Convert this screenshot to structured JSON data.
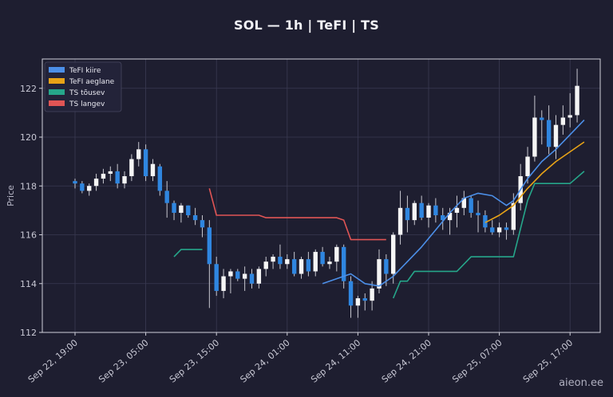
{
  "title": "SOL — 1h  |  TeFI  |  TS",
  "watermark": "aieon.ee",
  "chart_data": {
    "type": "candlestick",
    "ylabel": "Price",
    "ylim": [
      112,
      123.2
    ],
    "yticks": [
      112,
      114,
      116,
      118,
      120,
      122
    ],
    "xtick_labels": [
      "Sep 22, 19:00",
      "Sep 23, 05:00",
      "Sep 23, 15:00",
      "Sep 24, 01:00",
      "Sep 24, 11:00",
      "Sep 24, 21:00",
      "Sep 25, 07:00",
      "Sep 25, 17:00"
    ],
    "xtick_index": [
      0,
      10,
      20,
      30,
      40,
      50,
      60,
      70
    ],
    "grid": true,
    "legend_position": "top-left",
    "colors": {
      "up": "#f5f5f5",
      "down": "#2f86e0",
      "wick": "#c8c8d0",
      "fast": "#4c8fe8",
      "slow": "#e8a317",
      "ts_up": "#26a68a",
      "ts_down": "#e05555"
    },
    "legend": [
      {
        "label": "TeFI kiire",
        "color": "#4c8fe8"
      },
      {
        "label": "TeFI aeglane",
        "color": "#e8a317"
      },
      {
        "label": "TS tõusev",
        "color": "#26a68a"
      },
      {
        "label": "TS langev",
        "color": "#e05555"
      }
    ],
    "candles": [
      [
        118.2,
        118.3,
        117.9,
        118.1
      ],
      [
        118.1,
        118.2,
        117.7,
        117.8
      ],
      [
        117.8,
        118.1,
        117.6,
        118.0
      ],
      [
        118.0,
        118.5,
        117.8,
        118.3
      ],
      [
        118.3,
        118.7,
        118.1,
        118.5
      ],
      [
        118.5,
        118.8,
        118.2,
        118.6
      ],
      [
        118.6,
        118.9,
        117.9,
        118.1
      ],
      [
        118.1,
        118.6,
        117.9,
        118.4
      ],
      [
        118.4,
        119.3,
        118.2,
        119.1
      ],
      [
        119.1,
        119.8,
        118.8,
        119.5
      ],
      [
        119.5,
        119.7,
        118.2,
        118.4
      ],
      [
        118.4,
        119.1,
        118.2,
        118.9
      ],
      [
        118.8,
        118.9,
        117.6,
        117.8
      ],
      [
        117.8,
        118.2,
        116.7,
        117.3
      ],
      [
        117.3,
        117.4,
        116.6,
        116.9
      ],
      [
        116.9,
        117.3,
        116.5,
        117.2
      ],
      [
        117.2,
        117.2,
        116.7,
        116.8
      ],
      [
        116.8,
        117.1,
        116.4,
        116.6
      ],
      [
        116.6,
        116.8,
        115.9,
        116.3
      ],
      [
        116.3,
        116.6,
        113.0,
        114.8
      ],
      [
        114.8,
        115.1,
        113.5,
        113.7
      ],
      [
        113.7,
        114.6,
        113.4,
        114.3
      ],
      [
        114.3,
        114.6,
        113.6,
        114.5
      ],
      [
        114.5,
        114.6,
        114.1,
        114.2
      ],
      [
        114.2,
        114.7,
        113.7,
        114.4
      ],
      [
        114.4,
        114.6,
        113.8,
        114.0
      ],
      [
        114.0,
        114.7,
        113.8,
        114.6
      ],
      [
        114.6,
        115.1,
        114.3,
        114.9
      ],
      [
        114.9,
        115.2,
        114.6,
        115.1
      ],
      [
        115.1,
        115.6,
        114.6,
        114.8
      ],
      [
        114.8,
        115.2,
        114.6,
        115.0
      ],
      [
        115.0,
        115.3,
        114.3,
        114.4
      ],
      [
        114.4,
        115.1,
        114.2,
        115.0
      ],
      [
        115.0,
        115.3,
        114.3,
        114.5
      ],
      [
        114.5,
        115.4,
        114.3,
        115.3
      ],
      [
        115.3,
        115.5,
        114.7,
        114.8
      ],
      [
        114.8,
        115.1,
        114.6,
        114.9
      ],
      [
        114.9,
        115.6,
        114.5,
        115.5
      ],
      [
        115.5,
        115.6,
        113.8,
        114.1
      ],
      [
        114.1,
        114.3,
        112.6,
        113.1
      ],
      [
        113.1,
        113.5,
        112.6,
        113.4
      ],
      [
        113.4,
        113.6,
        112.9,
        113.3
      ],
      [
        113.3,
        114.1,
        112.9,
        113.8
      ],
      [
        113.8,
        115.4,
        113.6,
        115.0
      ],
      [
        115.0,
        115.2,
        113.9,
        114.4
      ],
      [
        114.4,
        116.1,
        114.0,
        116.0
      ],
      [
        116.0,
        117.8,
        115.6,
        117.1
      ],
      [
        117.1,
        117.6,
        116.1,
        116.6
      ],
      [
        116.6,
        117.4,
        116.4,
        117.3
      ],
      [
        117.3,
        117.6,
        116.6,
        116.7
      ],
      [
        116.7,
        117.3,
        116.3,
        117.2
      ],
      [
        117.2,
        117.5,
        116.5,
        116.8
      ],
      [
        116.8,
        117.1,
        116.2,
        116.6
      ],
      [
        116.6,
        117.1,
        116.0,
        116.9
      ],
      [
        116.9,
        117.6,
        116.3,
        117.1
      ],
      [
        117.1,
        117.8,
        116.8,
        117.5
      ],
      [
        117.5,
        117.6,
        116.7,
        116.9
      ],
      [
        116.9,
        117.4,
        116.1,
        116.8
      ],
      [
        116.8,
        117.0,
        116.1,
        116.3
      ],
      [
        116.3,
        116.6,
        116.0,
        116.1
      ],
      [
        116.1,
        116.5,
        115.9,
        116.3
      ],
      [
        116.3,
        116.5,
        115.8,
        116.2
      ],
      [
        116.2,
        117.7,
        116.0,
        117.3
      ],
      [
        117.3,
        118.9,
        117.0,
        118.4
      ],
      [
        118.4,
        119.6,
        118.1,
        119.2
      ],
      [
        119.2,
        121.7,
        119.0,
        120.8
      ],
      [
        120.8,
        121.1,
        119.7,
        120.7
      ],
      [
        120.7,
        121.3,
        119.3,
        119.6
      ],
      [
        119.6,
        120.9,
        119.1,
        120.5
      ],
      [
        120.5,
        121.3,
        120.1,
        120.8
      ],
      [
        120.8,
        121.8,
        120.4,
        120.9
      ],
      [
        120.9,
        122.8,
        120.6,
        122.1
      ]
    ],
    "fast": [
      [
        35,
        114.0
      ],
      [
        37,
        114.2
      ],
      [
        39,
        114.4
      ],
      [
        41,
        114.0
      ],
      [
        43,
        113.9
      ],
      [
        45,
        114.3
      ],
      [
        47,
        114.9
      ],
      [
        49,
        115.5
      ],
      [
        51,
        116.2
      ],
      [
        53,
        116.9
      ],
      [
        55,
        117.5
      ],
      [
        57,
        117.7
      ],
      [
        59,
        117.6
      ],
      [
        61,
        117.2
      ],
      [
        62,
        117.4
      ],
      [
        64,
        118.3
      ],
      [
        66,
        119.0
      ],
      [
        68,
        119.5
      ],
      [
        70,
        120.1
      ],
      [
        72,
        120.7
      ]
    ],
    "slow": [
      [
        58,
        116.5
      ],
      [
        60,
        116.8
      ],
      [
        62,
        117.2
      ],
      [
        64,
        117.9
      ],
      [
        66,
        118.5
      ],
      [
        68,
        119.0
      ],
      [
        70,
        119.4
      ],
      [
        72,
        119.8
      ]
    ],
    "ts_up": [
      [
        14,
        115.1
      ],
      [
        15,
        115.4
      ],
      [
        18,
        115.4
      ],
      [
        45,
        113.4
      ],
      [
        46,
        114.1
      ],
      [
        47,
        114.1
      ],
      [
        48,
        114.5
      ],
      [
        54,
        114.5
      ],
      [
        55,
        114.8
      ],
      [
        56,
        115.1
      ],
      [
        62,
        115.1
      ],
      [
        64,
        117.4
      ],
      [
        65,
        118.1
      ],
      [
        70,
        118.1
      ],
      [
        72,
        118.6
      ]
    ],
    "ts_down": [
      [
        19,
        117.9
      ],
      [
        20,
        116.8
      ],
      [
        26,
        116.8
      ],
      [
        27,
        116.7
      ],
      [
        37,
        116.7
      ],
      [
        38,
        116.6
      ],
      [
        39,
        115.8
      ],
      [
        44,
        115.8
      ]
    ]
  }
}
